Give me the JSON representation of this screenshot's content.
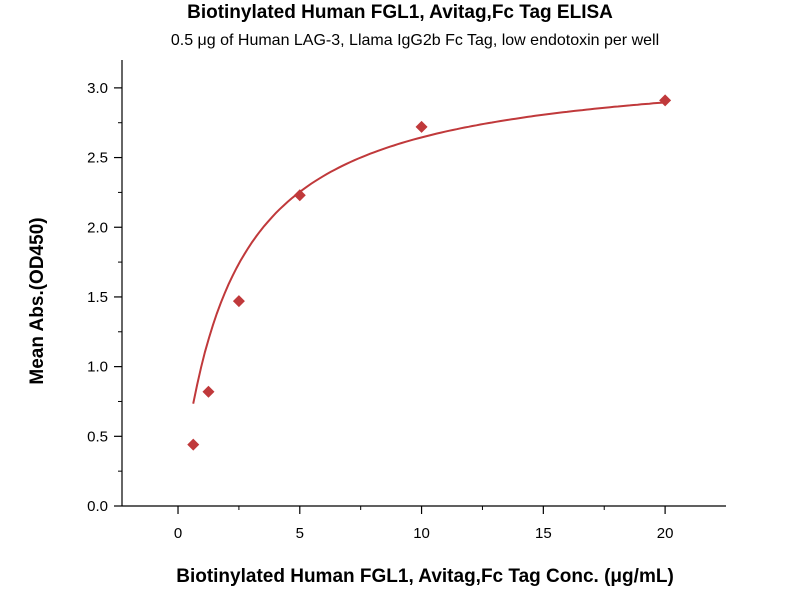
{
  "chart_data": {
    "type": "scatter",
    "title": "Biotinylated Human FGL1, Avitag,Fc Tag ELISA",
    "subtitle": "0.5 μg of Human LAG-3, Llama IgG2b Fc Tag, low endotoxin per well",
    "xlabel": "Biotinylated Human FGL1, Avitag,Fc Tag Conc. (μg/mL)",
    "ylabel": "Mean Abs.(OD450)",
    "xlim": [
      -2.3,
      22.5
    ],
    "ylim": [
      0,
      3.2
    ],
    "x_ticks": [
      "0",
      "5",
      "10",
      "15",
      "20"
    ],
    "y_ticks": [
      "0.0",
      "0.5",
      "1.0",
      "1.5",
      "2.0",
      "2.5",
      "3.0"
    ],
    "points": [
      {
        "x": 0.625,
        "y": 0.44
      },
      {
        "x": 1.25,
        "y": 0.82
      },
      {
        "x": 2.5,
        "y": 1.47
      },
      {
        "x": 5,
        "y": 2.23
      },
      {
        "x": 10,
        "y": 2.72
      },
      {
        "x": 20,
        "y": 2.91
      }
    ],
    "fit": {
      "model": "hyperbolic",
      "top": 3.2,
      "kd": 2.1
    },
    "color": "#c0393b",
    "grid": false
  }
}
